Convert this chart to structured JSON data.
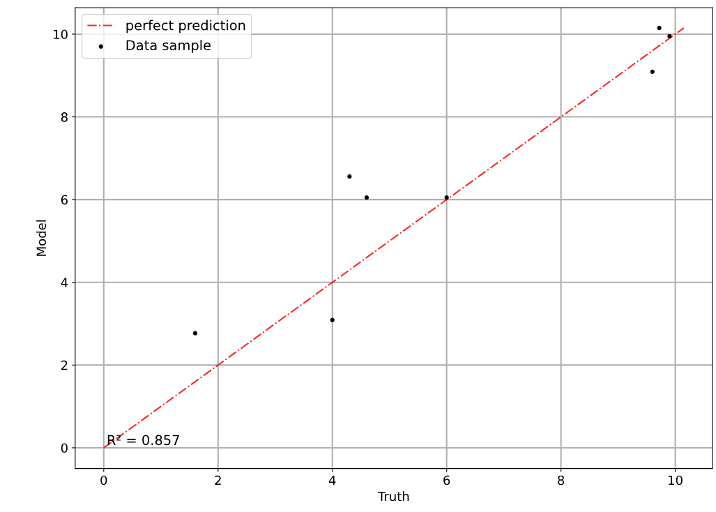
{
  "chart_data": {
    "type": "scatter",
    "xlabel": "Truth",
    "ylabel": "Model",
    "series": [
      {
        "name": "perfect prediction",
        "type": "line",
        "color": "#ff0000",
        "line_style": "dashdot",
        "x": [
          0,
          10.15
        ],
        "values": [
          0,
          10.15
        ]
      },
      {
        "name": "Data sample",
        "color": "#000000",
        "marker": "circle",
        "x": [
          1.6,
          4.0,
          4.3,
          4.6,
          6.0,
          9.6,
          9.72,
          9.9
        ],
        "values": [
          2.77,
          3.09,
          6.56,
          6.05,
          6.05,
          9.09,
          10.15,
          9.95
        ]
      }
    ],
    "xlim": [
      -0.5,
      10.65
    ],
    "ylim": [
      -0.5,
      10.64
    ],
    "xticks": [
      0,
      2,
      4,
      6,
      8,
      10
    ],
    "yticks": [
      0,
      2,
      4,
      6,
      8,
      10
    ],
    "grid": true,
    "legend": "top left",
    "annotations": [
      {
        "text": "R² = 0.857",
        "x": 0.05,
        "y": 0
      }
    ]
  }
}
